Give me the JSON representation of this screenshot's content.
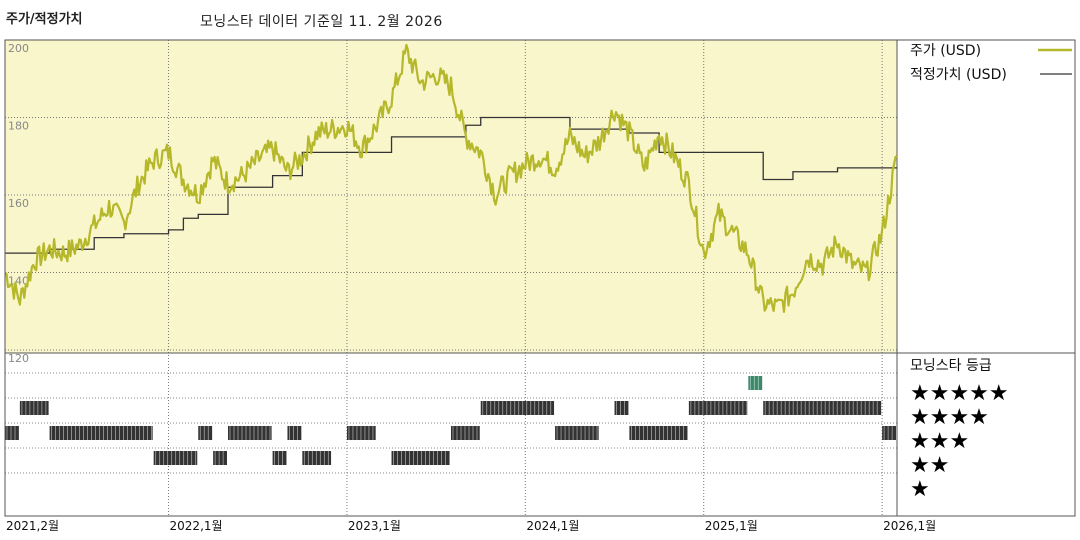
{
  "header": {
    "title": "주가/적정가치",
    "subtitle": "모닝스타 데이터 기준일 11. 2월 2026"
  },
  "chart_data": {
    "type": "line",
    "title": "주가/적정가치",
    "ylim": [
      120,
      200
    ],
    "y_ticks": [
      "200",
      "180",
      "160",
      "140",
      "120"
    ],
    "x_ticks": [
      "2021,2월",
      "2022,1월",
      "2023,1월",
      "2024,1월",
      "2025,1월",
      "2026,1월"
    ],
    "x_range": [
      "2021-02",
      "2026-02"
    ],
    "series": [
      {
        "name": "주가 (USD)",
        "color": "#b5b82a",
        "points": [
          [
            "2021-02",
            140
          ],
          [
            "2021-03",
            133
          ],
          [
            "2021-04",
            143
          ],
          [
            "2021-05",
            146
          ],
          [
            "2021-06",
            145
          ],
          [
            "2021-07",
            147
          ],
          [
            "2021-08",
            152
          ],
          [
            "2021-09",
            157
          ],
          [
            "2021-10",
            153
          ],
          [
            "2021-11",
            163
          ],
          [
            "2021-12",
            169
          ],
          [
            "2022-01",
            171
          ],
          [
            "2022-02",
            164
          ],
          [
            "2022-03",
            160
          ],
          [
            "2022-04",
            169
          ],
          [
            "2022-05",
            163
          ],
          [
            "2022-06",
            165
          ],
          [
            "2022-07",
            169
          ],
          [
            "2022-08",
            172
          ],
          [
            "2022-09",
            166
          ],
          [
            "2022-10",
            170
          ],
          [
            "2022-11",
            176
          ],
          [
            "2022-12",
            177
          ],
          [
            "2023-01",
            178
          ],
          [
            "2023-02",
            172
          ],
          [
            "2023-03",
            178
          ],
          [
            "2023-04",
            185
          ],
          [
            "2023-05",
            197
          ],
          [
            "2023-06",
            189
          ],
          [
            "2023-07",
            191
          ],
          [
            "2023-08",
            188
          ],
          [
            "2023-09",
            175
          ],
          [
            "2023-10",
            171
          ],
          [
            "2023-11",
            160
          ],
          [
            "2023-12",
            165
          ],
          [
            "2024-01",
            168
          ],
          [
            "2024-02",
            170
          ],
          [
            "2024-03",
            167
          ],
          [
            "2024-04",
            175
          ],
          [
            "2024-05",
            170
          ],
          [
            "2024-06",
            174
          ],
          [
            "2024-07",
            182
          ],
          [
            "2024-08",
            176
          ],
          [
            "2024-09",
            167
          ],
          [
            "2024-10",
            176
          ],
          [
            "2024-11",
            170
          ],
          [
            "2024-12",
            163
          ],
          [
            "2025-01",
            145
          ],
          [
            "2025-02",
            155
          ],
          [
            "2025-03",
            150
          ],
          [
            "2025-04",
            145
          ],
          [
            "2025-05",
            132
          ],
          [
            "2025-06",
            131
          ],
          [
            "2025-07",
            135
          ],
          [
            "2025-08",
            144
          ],
          [
            "2025-09",
            142
          ],
          [
            "2025-10",
            148
          ],
          [
            "2025-11",
            142
          ],
          [
            "2025-12",
            140
          ],
          [
            "2026-01",
            150
          ],
          [
            "2026-02",
            170
          ]
        ]
      },
      {
        "name": "적정가치 (USD)",
        "color": "#333333",
        "steps": [
          [
            "2021-02",
            145
          ],
          [
            "2021-05",
            146
          ],
          [
            "2021-08",
            149
          ],
          [
            "2021-10",
            150
          ],
          [
            "2022-01",
            151
          ],
          [
            "2022-02",
            154
          ],
          [
            "2022-03",
            155
          ],
          [
            "2022-05",
            162
          ],
          [
            "2022-07",
            162
          ],
          [
            "2022-08",
            165
          ],
          [
            "2022-10",
            171
          ],
          [
            "2023-01",
            171
          ],
          [
            "2023-04",
            175
          ],
          [
            "2023-09",
            178
          ],
          [
            "2023-10",
            180
          ],
          [
            "2024-04",
            177
          ],
          [
            "2024-08",
            176
          ],
          [
            "2024-10",
            171
          ],
          [
            "2025-02",
            171
          ],
          [
            "2025-05",
            164
          ],
          [
            "2025-07",
            166
          ],
          [
            "2025-10",
            167
          ],
          [
            "2026-02",
            167
          ]
        ]
      }
    ],
    "ratings": {
      "title": "모닝스타 등급",
      "levels": [
        "★★★★★",
        "★★★★",
        "★★★",
        "★★",
        "★"
      ],
      "segments": [
        {
          "stars": 3,
          "from": "2021-02",
          "to": "2021-03"
        },
        {
          "stars": 4,
          "from": "2021-03",
          "to": "2021-05"
        },
        {
          "stars": 3,
          "from": "2021-05",
          "to": "2021-12"
        },
        {
          "stars": 2,
          "from": "2021-12",
          "to": "2022-03"
        },
        {
          "stars": 3,
          "from": "2022-03",
          "to": "2022-04"
        },
        {
          "stars": 2,
          "from": "2022-04",
          "to": "2022-05"
        },
        {
          "stars": 3,
          "from": "2022-05",
          "to": "2022-08"
        },
        {
          "stars": 2,
          "from": "2022-08",
          "to": "2022-09"
        },
        {
          "stars": 3,
          "from": "2022-09",
          "to": "2022-10"
        },
        {
          "stars": 2,
          "from": "2022-10",
          "to": "2022-12"
        },
        {
          "stars": 3,
          "from": "2023-01",
          "to": "2023-03"
        },
        {
          "stars": 2,
          "from": "2023-04",
          "to": "2023-08"
        },
        {
          "stars": 3,
          "from": "2023-08",
          "to": "2023-10"
        },
        {
          "stars": 4,
          "from": "2023-10",
          "to": "2024-03"
        },
        {
          "stars": 3,
          "from": "2024-03",
          "to": "2024-06"
        },
        {
          "stars": 4,
          "from": "2024-07",
          "to": "2024-08"
        },
        {
          "stars": 3,
          "from": "2024-08",
          "to": "2024-12"
        },
        {
          "stars": 4,
          "from": "2024-12",
          "to": "2025-04"
        },
        {
          "stars": 5,
          "from": "2025-04",
          "to": "2025-05"
        },
        {
          "stars": 4,
          "from": "2025-05",
          "to": "2026-01"
        },
        {
          "stars": 3,
          "from": "2026-01",
          "to": "2026-02"
        }
      ],
      "colors": {
        "default": "#333333",
        "five": "#3a8a6a"
      }
    }
  }
}
